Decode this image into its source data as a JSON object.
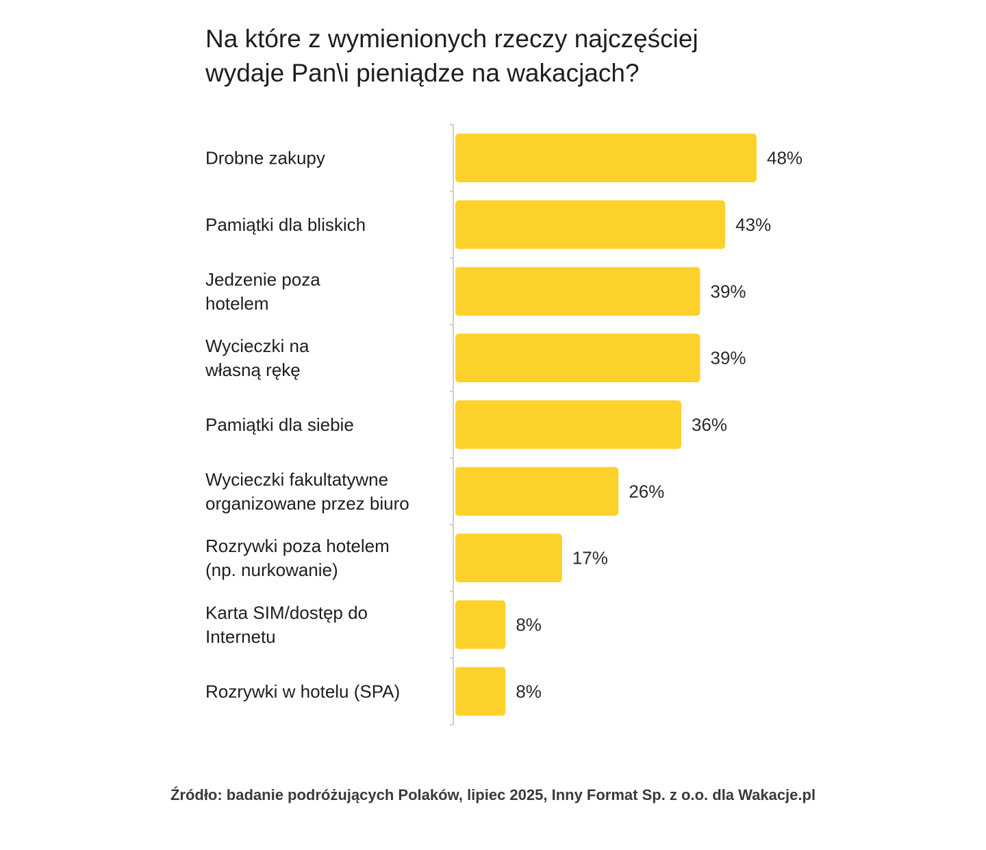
{
  "chart_data": {
    "type": "bar",
    "orientation": "horizontal",
    "title": "Na które z wymienionych rzeczy najczęściej\nwydaje Pan\\i pieniądze na wakacjach?",
    "categories": [
      "Drobne zakupy",
      "Pamiątki dla bliskich",
      "Jedzenie poza\nhotelem",
      "Wycieczki na\nwłasną rękę",
      "Pamiątki dla siebie",
      "Wycieczki fakultatywne\norganizowane przez biuro",
      "Rozrywki poza hotelem\n(np. nurkowanie)",
      "Karta SIM/dostęp do\nInternetu",
      "Rozrywki w hotelu (SPA)"
    ],
    "values": [
      48,
      43,
      39,
      39,
      36,
      26,
      17,
      8,
      8
    ],
    "value_labels": [
      "48%",
      "43%",
      "39%",
      "39%",
      "36%",
      "26%",
      "17%",
      "8%",
      "8%"
    ],
    "unit": "%",
    "bar_color": "#FDD22A",
    "grid": false,
    "legend": "none"
  },
  "source": "Źródło: badanie podróżujących Polaków, lipiec 2025, Inny Format Sp. z o.o. dla Wakacje.pl"
}
